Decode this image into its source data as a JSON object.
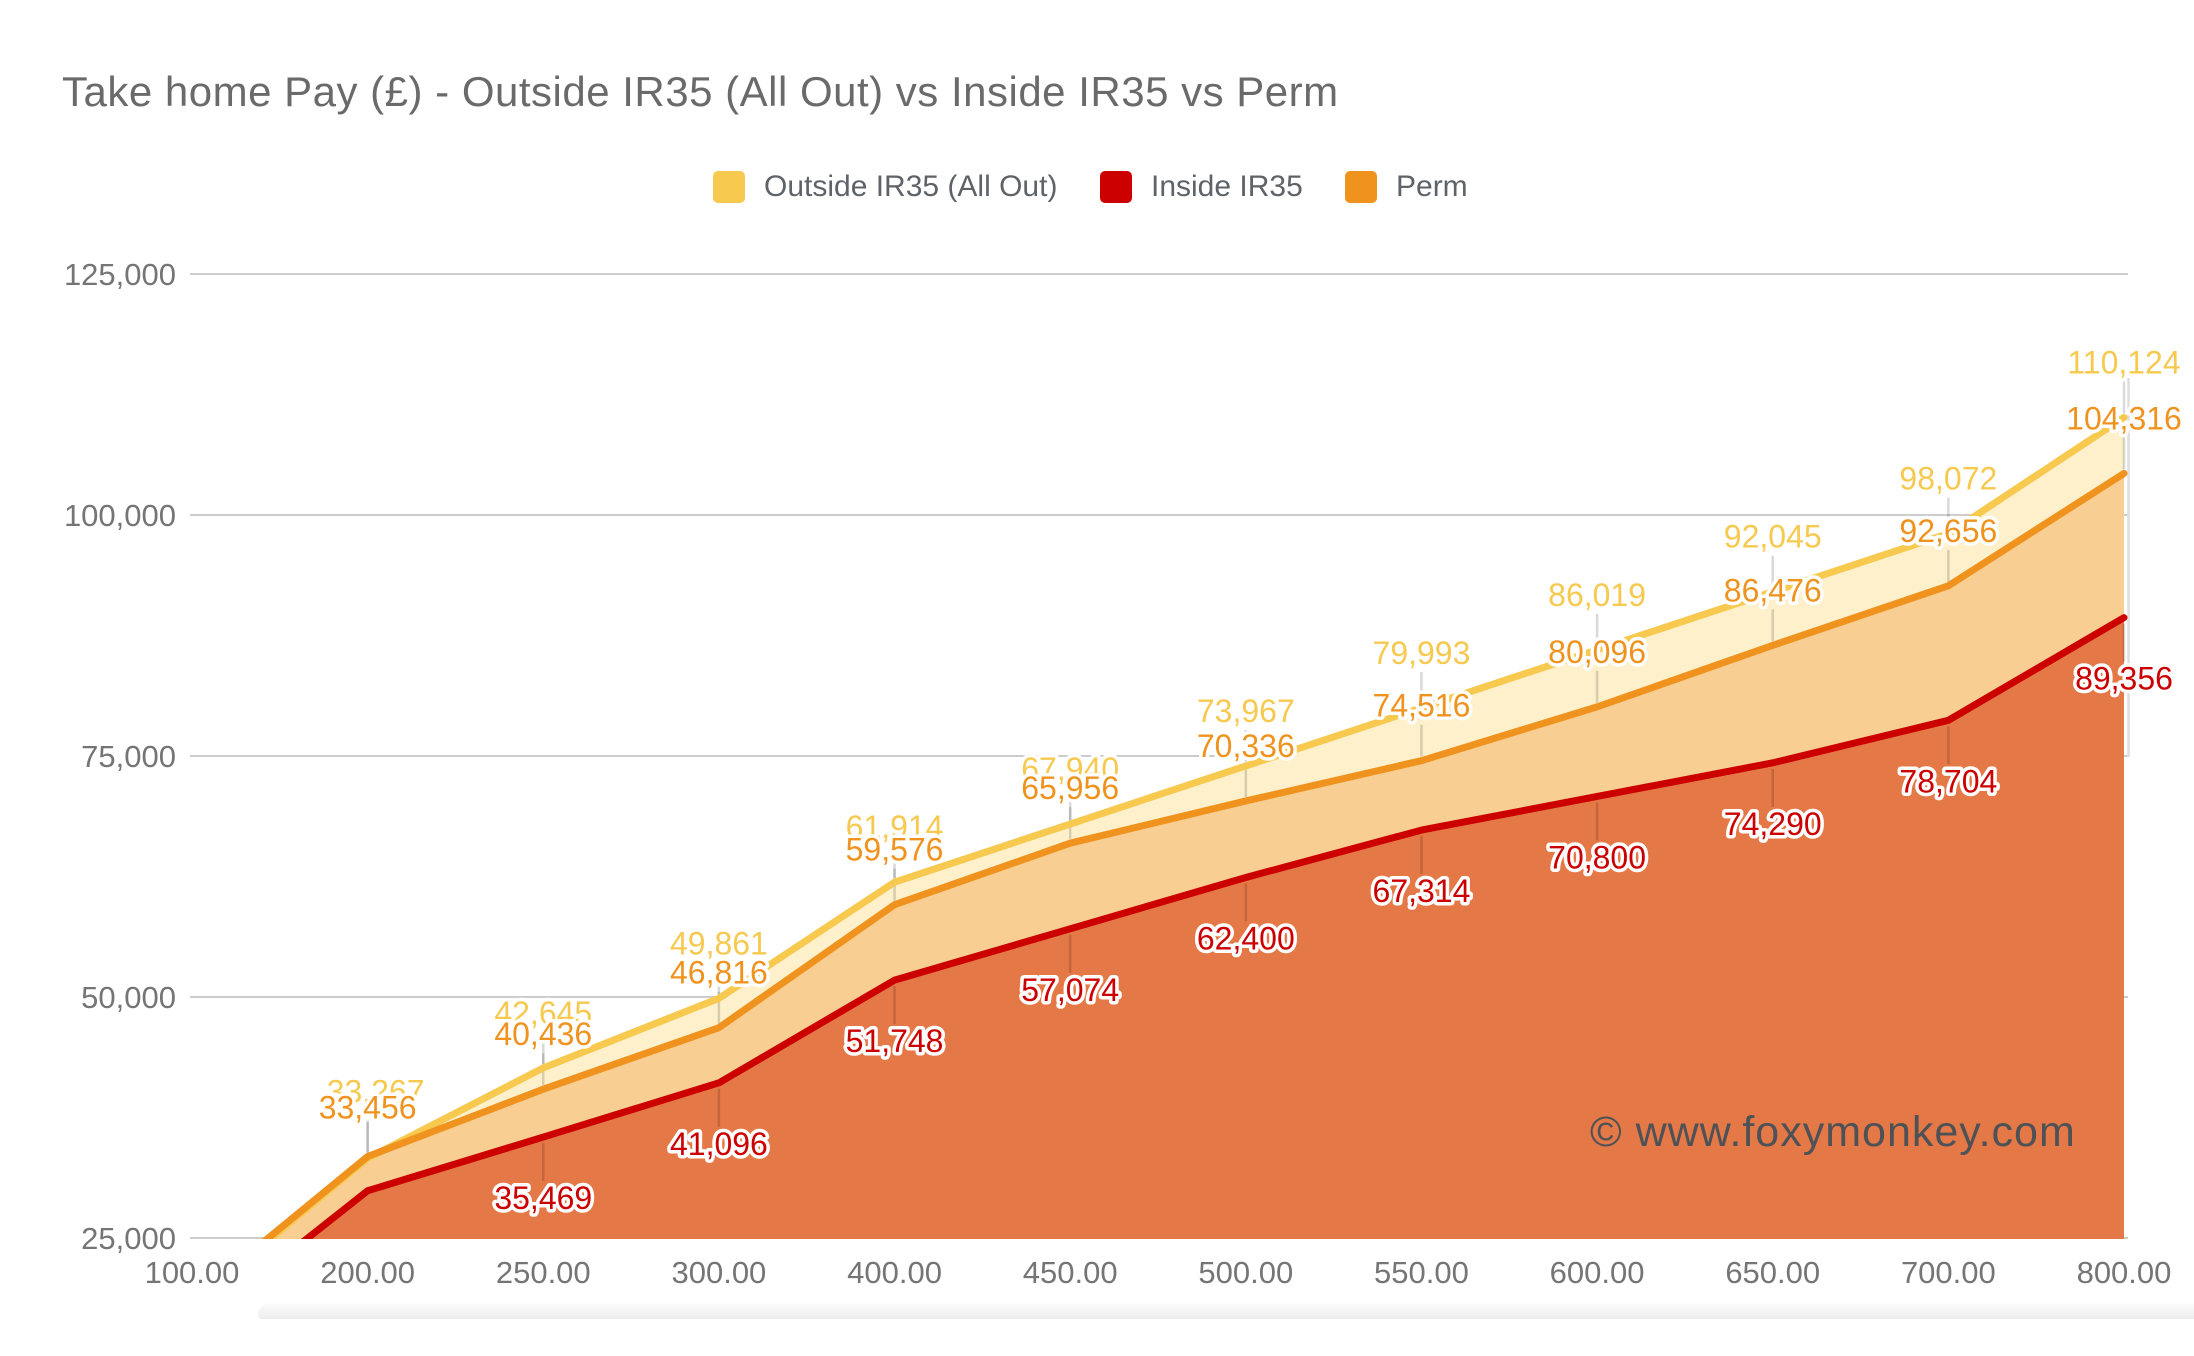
{
  "title": "Take home Pay (£) - Outside IR35 (All Out) vs Inside IR35 vs Perm",
  "watermark": {
    "text": "© www.foxymonkey.com"
  },
  "chart_data": {
    "type": "area",
    "stacked": false,
    "title": "Take home Pay (£) - Outside IR35 (All Out) vs Inside IR35 vs Perm",
    "legend_position": "top",
    "grid": true,
    "x_axis": {
      "categories": [
        "100.00",
        "200.00",
        "250.00",
        "300.00",
        "400.00",
        "450.00",
        "500.00",
        "550.00",
        "600.00",
        "650.00",
        "700.00",
        "800.00"
      ]
    },
    "y_axis": {
      "min": 25000,
      "max": 125000,
      "tick_values": [
        25000,
        50000,
        75000,
        100000,
        125000
      ],
      "tick_labels": [
        "25,000",
        "50,000",
        "75,000",
        "100,000",
        "125,000"
      ]
    },
    "series": [
      {
        "name": "Outside IR35 (All Out)",
        "color": "#F7C94F",
        "fill_color": "#FDF0CB",
        "values": [
          18200,
          33267,
          42645,
          49861,
          61914,
          67940,
          73967,
          79993,
          86019,
          92045,
          98072,
          110124
        ],
        "labels": [
          null,
          "33,267",
          "42,645",
          "49,861",
          "61,914",
          "67,940",
          "73,967",
          "79,993",
          "86,019",
          "92,045",
          "98,072",
          "110,124"
        ]
      },
      {
        "name": "Inside IR35",
        "color": "#CC0000",
        "fill_color": "#E57847",
        "values": [
          15500,
          29900,
          35469,
          41096,
          51748,
          57074,
          62400,
          67314,
          70800,
          74290,
          78704,
          89356
        ],
        "labels": [
          null,
          null,
          "35,469",
          "41,096",
          "51,748",
          "57,074",
          "62,400",
          "67,314",
          "70,800",
          "74,290",
          "78,704",
          "89,356"
        ]
      },
      {
        "name": "Perm",
        "color": "#F0931E",
        "fill_color": "#F8CE92",
        "values": [
          18500,
          33456,
          40436,
          46816,
          59576,
          65956,
          70336,
          74516,
          80096,
          86476,
          92656,
          104316
        ],
        "labels": [
          null,
          "33,456",
          "40,436",
          "46,816",
          "59,576",
          "65,956",
          "70,336",
          "74,516",
          "80,096",
          "86,476",
          "92,656",
          "104,316"
        ]
      }
    ],
    "note": "Points at 100.00 (all series) and at 200.00 (Inside IR35) fall below the visible axis minimum or carry no data label in the image; those numeric values are estimates read from the plotted line positions."
  }
}
